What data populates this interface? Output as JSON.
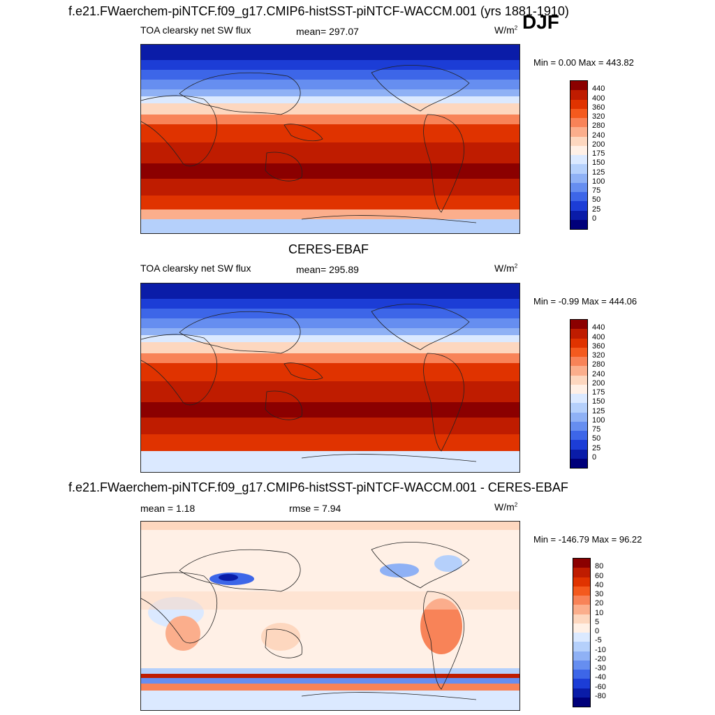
{
  "season": "DJF",
  "units_label": "W/m",
  "units_exp": "2",
  "panels": [
    {
      "title": "f.e21.FWaerchem-piNTCF.f09_g17.CMIP6-histSST-piNTCF-WACCM.001 (yrs 1881-1910)",
      "left_label": "TOA clearsky net SW flux",
      "mean_label": "mean= 297.07",
      "minmax": "Min =   0.00 Max = 443.82",
      "min": 0.0,
      "max": 443.82
    },
    {
      "title": "CERES-EBAF",
      "left_label": "TOA clearsky net SW flux",
      "mean_label": "mean= 295.89",
      "minmax": "Min =  -0.99 Max = 444.06",
      "min": -0.99,
      "max": 444.06
    },
    {
      "title": "f.e21.FWaerchem-piNTCF.f09_g17.CMIP6-histSST-piNTCF-WACCM.001 - CERES-EBAF",
      "left_label": "mean =   1.18",
      "mean_label": "rmse =   7.94",
      "minmax": "Min = -146.79 Max =  96.22",
      "min": -146.79,
      "max": 96.22
    }
  ],
  "colorbar_abs": {
    "labels": [
      "440",
      "400",
      "360",
      "320",
      "280",
      "240",
      "200",
      "175",
      "150",
      "125",
      "100",
      "75",
      "50",
      "25",
      "0"
    ],
    "colors": [
      "#8b0000",
      "#bf1c00",
      "#e03300",
      "#f45a1e",
      "#f88358",
      "#fbae8c",
      "#fdd7bf",
      "#fff0e6",
      "#dbe9ff",
      "#b5d0fb",
      "#8fb1f5",
      "#668ef0",
      "#3d66e8",
      "#1c3dd6",
      "#0a1ca8",
      "#00007a"
    ]
  },
  "colorbar_diff": {
    "labels": [
      "80",
      "60",
      "40",
      "30",
      "20",
      "10",
      "5",
      "0",
      "-5",
      "-10",
      "-20",
      "-30",
      "-40",
      "-60",
      "-80"
    ],
    "colors": [
      "#8b0000",
      "#bf1c00",
      "#e03300",
      "#f45a1e",
      "#f88358",
      "#fbae8c",
      "#fdd7bf",
      "#fff0e6",
      "#dbe9ff",
      "#b5d0fb",
      "#8fb1f5",
      "#668ef0",
      "#3d66e8",
      "#1c3dd6",
      "#0a1ca8",
      "#00007a"
    ]
  }
}
